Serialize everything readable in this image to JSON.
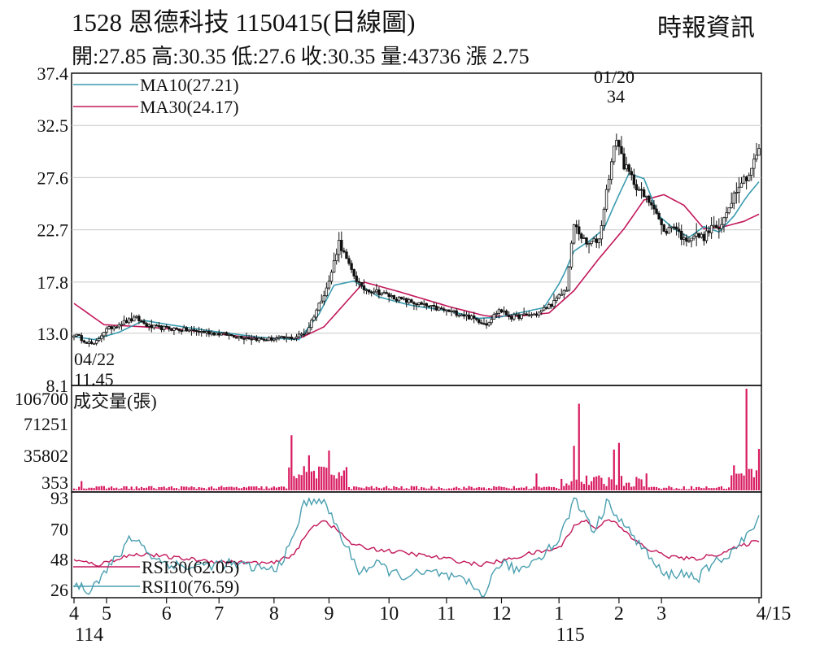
{
  "header": {
    "title": "1528  恩德科技 1150415(日線圖)",
    "source": "時報資訊",
    "quote_line": "開:27.85 高:30.35 低:27.6 收:30.35 量:43736 漲 2.75"
  },
  "colors": {
    "ma10": "#3a9cb0",
    "ma30": "#c2185b",
    "volume": "#d81b60",
    "rsi30": "#c2185b",
    "rsi10": "#4a9fb0",
    "candle": "#111111",
    "grid": "#c8c8c8"
  },
  "chart_data": [
    {
      "type": "candlestick",
      "title": "1528  恩德科技 1150415(日線圖)",
      "y_ticks": [
        "37.4",
        "32.5",
        "27.6",
        "22.7",
        "17.8",
        "13.0",
        "8.1"
      ],
      "ylim": [
        8.1,
        37.4
      ],
      "x_ticks": [
        "4",
        "5",
        "6",
        "7",
        "8",
        "9",
        "10",
        "11",
        "12",
        "1",
        "2",
        "3",
        "4/15"
      ],
      "x_year_labels": [
        "114",
        "115"
      ],
      "legend": [
        {
          "name": "MA10(27.21)",
          "color_key": "ma10"
        },
        {
          "name": "MA30(24.17)",
          "color_key": "ma30"
        }
      ],
      "annotations": [
        {
          "label_date": "04/22",
          "label_value": "11.45"
        },
        {
          "label_date": "01/20",
          "label_value": "34"
        }
      ],
      "ma10_anchors": [
        [
          0,
          12.7
        ],
        [
          8,
          12.4
        ],
        [
          18,
          13.1
        ],
        [
          28,
          14.2
        ],
        [
          38,
          13.8
        ],
        [
          55,
          13.2
        ],
        [
          75,
          12.6
        ],
        [
          90,
          12.4
        ],
        [
          98,
          14.8
        ],
        [
          104,
          17.5
        ],
        [
          112,
          17.9
        ],
        [
          122,
          16.4
        ],
        [
          135,
          15.6
        ],
        [
          150,
          15.1
        ],
        [
          162,
          14.4
        ],
        [
          170,
          14.5
        ],
        [
          178,
          14.9
        ],
        [
          188,
          15.4
        ],
        [
          195,
          18.0
        ],
        [
          200,
          20.7
        ],
        [
          207,
          21.8
        ],
        [
          212,
          22.8
        ],
        [
          217,
          25.5
        ],
        [
          222,
          28.0
        ],
        [
          228,
          27.5
        ],
        [
          234,
          24.0
        ],
        [
          240,
          22.8
        ],
        [
          246,
          22.0
        ],
        [
          252,
          23.0
        ],
        [
          258,
          22.5
        ],
        [
          264,
          24.0
        ],
        [
          269,
          25.8
        ],
        [
          274,
          27.21
        ]
      ],
      "ma30_anchors": [
        [
          0,
          15.8
        ],
        [
          12,
          13.8
        ],
        [
          28,
          13.6
        ],
        [
          45,
          13.3
        ],
        [
          70,
          12.6
        ],
        [
          90,
          12.5
        ],
        [
          100,
          13.6
        ],
        [
          108,
          15.7
        ],
        [
          116,
          17.8
        ],
        [
          130,
          16.9
        ],
        [
          150,
          15.5
        ],
        [
          165,
          14.6
        ],
        [
          178,
          14.6
        ],
        [
          190,
          14.9
        ],
        [
          200,
          17.0
        ],
        [
          210,
          20.0
        ],
        [
          220,
          22.8
        ],
        [
          228,
          25.5
        ],
        [
          236,
          26.0
        ],
        [
          244,
          25.0
        ],
        [
          252,
          22.8
        ],
        [
          260,
          23.0
        ],
        [
          268,
          23.5
        ],
        [
          274,
          24.17
        ]
      ],
      "close_anchors": [
        [
          0,
          12.9
        ],
        [
          5,
          12.2
        ],
        [
          8,
          11.9
        ],
        [
          12,
          13.2
        ],
        [
          18,
          13.9
        ],
        [
          25,
          14.4
        ],
        [
          30,
          13.6
        ],
        [
          45,
          13.3
        ],
        [
          60,
          12.9
        ],
        [
          75,
          12.4
        ],
        [
          88,
          12.6
        ],
        [
          93,
          13.1
        ],
        [
          97,
          15.2
        ],
        [
          102,
          17.8
        ],
        [
          106,
          21.6
        ],
        [
          110,
          19.3
        ],
        [
          115,
          17.2
        ],
        [
          120,
          17.0
        ],
        [
          130,
          16.2
        ],
        [
          145,
          15.3
        ],
        [
          155,
          14.8
        ],
        [
          165,
          13.9
        ],
        [
          170,
          15.2
        ],
        [
          175,
          14.5
        ],
        [
          185,
          14.8
        ],
        [
          192,
          15.9
        ],
        [
          197,
          17.2
        ],
        [
          200,
          23.2
        ],
        [
          205,
          21.3
        ],
        [
          210,
          21.8
        ],
        [
          214,
          27.8
        ],
        [
          217,
          31.4
        ],
        [
          220,
          28.8
        ],
        [
          224,
          27.2
        ],
        [
          228,
          25.8
        ],
        [
          232,
          25.0
        ],
        [
          236,
          22.4
        ],
        [
          240,
          23.2
        ],
        [
          244,
          21.7
        ],
        [
          248,
          22.2
        ],
        [
          252,
          22.0
        ],
        [
          256,
          23.2
        ],
        [
          258,
          22.5
        ],
        [
          262,
          25.0
        ],
        [
          266,
          27.1
        ],
        [
          270,
          27.9
        ],
        [
          274,
          30.35
        ]
      ],
      "daily_high_low_extremes": {
        "low": 11.45,
        "low_date": "04/22",
        "high": 34,
        "high_date": "01/20"
      }
    },
    {
      "type": "bar",
      "title": "成交量(張)",
      "y_ticks": [
        "106700",
        "71251",
        "35802",
        "353"
      ],
      "ylim": [
        353,
        106700
      ],
      "peak_values": [
        {
          "index": 3,
          "value": 10000
        },
        {
          "index": 87,
          "value": 58000
        },
        {
          "index": 94,
          "value": 37000
        },
        {
          "index": 102,
          "value": 42000
        },
        {
          "index": 185,
          "value": 18000
        },
        {
          "index": 200,
          "value": 47000
        },
        {
          "index": 202,
          "value": 91000
        },
        {
          "index": 216,
          "value": 43000
        },
        {
          "index": 218,
          "value": 50000
        },
        {
          "index": 229,
          "value": 18000
        },
        {
          "index": 269,
          "value": 106700
        },
        {
          "index": 274,
          "value": 43736
        }
      ]
    },
    {
      "type": "line",
      "title": "RSI",
      "y_ticks": [
        "93",
        "70",
        "48",
        "26"
      ],
      "ylim": [
        20,
        97
      ],
      "legend": [
        {
          "name": "RSI30(62.05)",
          "color_key": "rsi30"
        },
        {
          "name": "RSI10(76.59)",
          "color_key": "rsi10"
        }
      ],
      "rsi10_anchors": [
        [
          0,
          30
        ],
        [
          6,
          26
        ],
        [
          12,
          38
        ],
        [
          20,
          55
        ],
        [
          22,
          65
        ],
        [
          28,
          58
        ],
        [
          32,
          48
        ],
        [
          45,
          42
        ],
        [
          60,
          45
        ],
        [
          80,
          40
        ],
        [
          86,
          55
        ],
        [
          92,
          88
        ],
        [
          98,
          93
        ],
        [
          103,
          80
        ],
        [
          108,
          60
        ],
        [
          114,
          40
        ],
        [
          122,
          44
        ],
        [
          130,
          36
        ],
        [
          145,
          38
        ],
        [
          158,
          30
        ],
        [
          164,
          22
        ],
        [
          170,
          45
        ],
        [
          178,
          40
        ],
        [
          186,
          50
        ],
        [
          194,
          62
        ],
        [
          200,
          91
        ],
        [
          205,
          80
        ],
        [
          208,
          68
        ],
        [
          214,
          92
        ],
        [
          217,
          80
        ],
        [
          222,
          68
        ],
        [
          226,
          60
        ],
        [
          232,
          45
        ],
        [
          236,
          36
        ],
        [
          242,
          38
        ],
        [
          250,
          35
        ],
        [
          256,
          45
        ],
        [
          262,
          52
        ],
        [
          268,
          62
        ],
        [
          274,
          76.59
        ]
      ],
      "rsi30_anchors": [
        [
          0,
          47
        ],
        [
          10,
          44
        ],
        [
          20,
          50
        ],
        [
          28,
          52
        ],
        [
          40,
          49
        ],
        [
          60,
          46
        ],
        [
          80,
          45
        ],
        [
          88,
          52
        ],
        [
          95,
          71
        ],
        [
          100,
          77
        ],
        [
          106,
          68
        ],
        [
          112,
          58
        ],
        [
          122,
          55
        ],
        [
          135,
          52
        ],
        [
          150,
          48
        ],
        [
          162,
          44
        ],
        [
          172,
          47
        ],
        [
          182,
          52
        ],
        [
          194,
          56
        ],
        [
          200,
          72
        ],
        [
          205,
          77
        ],
        [
          208,
          70
        ],
        [
          214,
          78
        ],
        [
          218,
          72
        ],
        [
          224,
          62
        ],
        [
          230,
          55
        ],
        [
          238,
          50
        ],
        [
          248,
          48
        ],
        [
          258,
          52
        ],
        [
          266,
          57
        ],
        [
          274,
          62.05
        ]
      ]
    }
  ]
}
